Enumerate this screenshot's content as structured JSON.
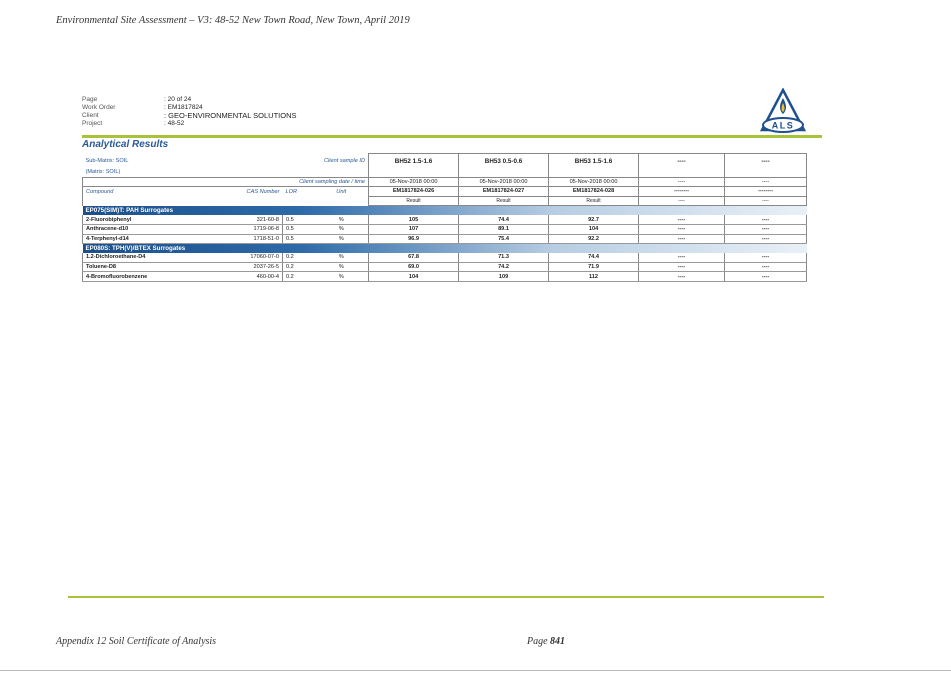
{
  "header": {
    "title": "Environmental Site Assessment – V3: 48-52 New Town Road, New Town, April 2019"
  },
  "meta": [
    {
      "key": "Page",
      "value": ": 20 of 24"
    },
    {
      "key": "Work Order",
      "value": ": EM1817824"
    },
    {
      "key": "Client",
      "value": ": GEO-ENVIRONMENTAL SOLUTIONS"
    },
    {
      "key": "Project",
      "value": ": 48-52"
    }
  ],
  "logo": {
    "text": "ALS",
    "icon": "als-flame-triangle-logo",
    "color": "#1f4f8c"
  },
  "section_title": "Analytical Results",
  "table": {
    "submatrix": "Sub-Matrix: SOIL",
    "matrix": "(Matrix: SOIL)",
    "client_sample_id_label": "Client sample ID",
    "sampling_label": "Client sampling date / time",
    "col_compound": "Compound",
    "col_cas": "CAS Number",
    "col_lor": "LOR",
    "col_unit": "Unit",
    "result_label": "Result",
    "samples": [
      {
        "id": "BH52 1.5-1.6",
        "date": "05-Nov-2018 00:00",
        "lab": "EM1817824-026",
        "result": "Result"
      },
      {
        "id": "BH53 0.5-0.6",
        "date": "05-Nov-2018 00:00",
        "lab": "EM1817824-027",
        "result": "Result"
      },
      {
        "id": "BH53 1.5-1.6",
        "date": "05-Nov-2018 00:00",
        "lab": "EM1817824-028",
        "result": "Result"
      },
      {
        "id": "----",
        "date": "----",
        "lab": "--------",
        "result": "----"
      },
      {
        "id": "----",
        "date": "----",
        "lab": "--------",
        "result": "----"
      }
    ],
    "groups": [
      {
        "name": "EP075(SIM)T: PAH Surrogates",
        "rows": [
          {
            "compound": "2-Fluorobiphenyl",
            "cas": "321-60-8",
            "lor": "0.5",
            "unit": "%",
            "values": [
              "105",
              "74.4",
              "92.7",
              "----",
              "----"
            ]
          },
          {
            "compound": "Anthracene-d10",
            "cas": "1719-06-8",
            "lor": "0.5",
            "unit": "%",
            "values": [
              "107",
              "89.1",
              "104",
              "----",
              "----"
            ]
          },
          {
            "compound": "4-Terphenyl-d14",
            "cas": "1718-51-0",
            "lor": "0.5",
            "unit": "%",
            "values": [
              "96.9",
              "75.4",
              "92.2",
              "----",
              "----"
            ]
          }
        ]
      },
      {
        "name": "EP080S: TPH(V)/BTEX Surrogates",
        "rows": [
          {
            "compound": "1.2-Dichloroethane-D4",
            "cas": "17060-07-0",
            "lor": "0.2",
            "unit": "%",
            "values": [
              "67.8",
              "71.3",
              "74.4",
              "----",
              "----"
            ]
          },
          {
            "compound": "Toluene-D8",
            "cas": "2037-26-5",
            "lor": "0.2",
            "unit": "%",
            "values": [
              "69.0",
              "74.2",
              "71.9",
              "----",
              "----"
            ]
          },
          {
            "compound": "4-Bromofluorobenzene",
            "cas": "460-00-4",
            "lor": "0.2",
            "unit": "%",
            "values": [
              "104",
              "109",
              "112",
              "----",
              "----"
            ]
          }
        ]
      }
    ]
  },
  "footer": {
    "left": "Appendix 12 Soil Certificate of Analysis",
    "page_prefix": "Page ",
    "page_number": "841"
  }
}
